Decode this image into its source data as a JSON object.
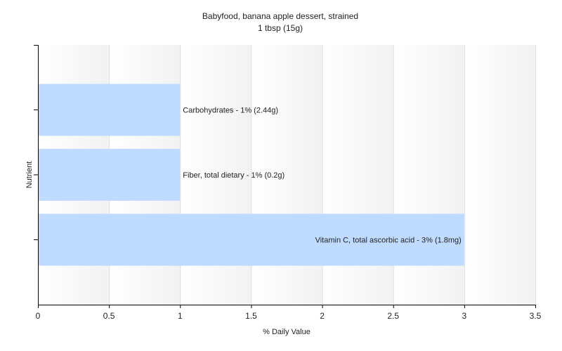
{
  "chart_data": {
    "type": "bar",
    "orientation": "horizontal",
    "title": "Babyfood, banana apple dessert, strained",
    "subtitle": "1 tbsp (15g)",
    "xlabel": "% Daily Value",
    "ylabel": "Nutrient",
    "xlim": [
      0,
      3.5
    ],
    "xticks": [
      "0",
      "0.5",
      "1",
      "1.5",
      "2",
      "2.5",
      "3",
      "3.5"
    ],
    "grid": true,
    "categories": [
      "Carbohydrates",
      "Fiber, total dietary",
      "Vitamin C, total ascorbic acid"
    ],
    "values": [
      1,
      1,
      3
    ],
    "data_labels": [
      "Carbohydrates - 1% (2.44g)",
      "Fiber, total dietary - 1% (0.2g)",
      "Vitamin C, total ascorbic acid - 3% (1.8mg)"
    ],
    "bar_color": "#bfdbff",
    "grid_color": "#dddddd",
    "axis_color": "#000000"
  }
}
